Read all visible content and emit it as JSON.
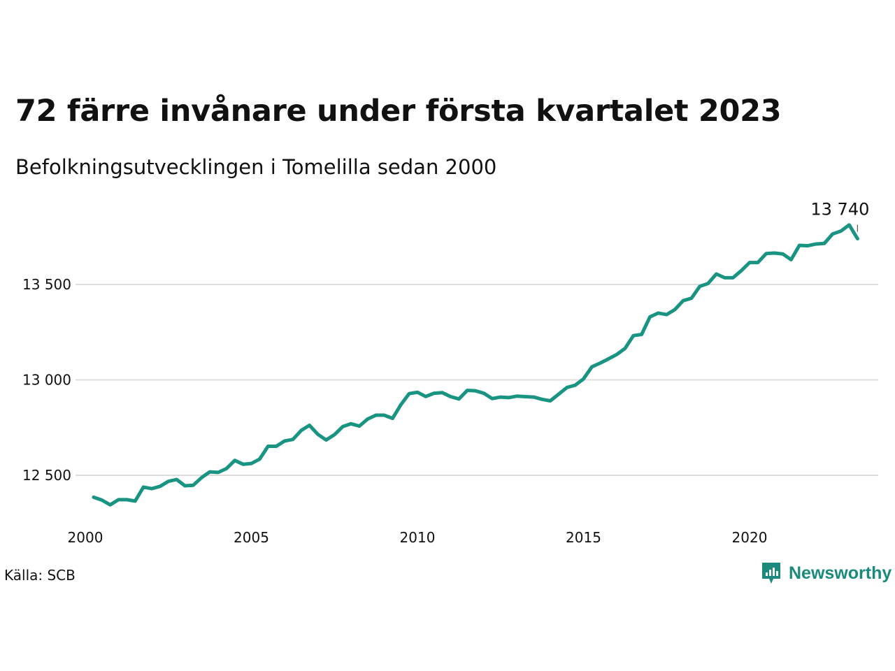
{
  "header": {
    "title": "72 färre invånare under första kvartalet 2023",
    "subtitle": "Befolkningsutvecklingen i Tomelilla sedan 2000"
  },
  "footer": {
    "source": "Källa: SCB",
    "brand_name": "Newsworthy",
    "brand_color": "#1a8a7c"
  },
  "colors": {
    "line": "#1a9482",
    "grid": "#dddddd",
    "text": "#111111"
  },
  "chart_data": {
    "type": "line",
    "title": "72 färre invånare under första kvartalet 2023",
    "subtitle": "Befolkningsutvecklingen i Tomelilla sedan 2000",
    "xlabel": "",
    "ylabel": "",
    "x_ticks": [
      2000,
      2005,
      2010,
      2015,
      2020
    ],
    "x_tick_labels": [
      "2000",
      "2005",
      "2010",
      "2015",
      "2020"
    ],
    "y_ticks": [
      12500,
      13000,
      13500
    ],
    "y_tick_labels": [
      "12 500",
      "13 000",
      "13 500"
    ],
    "xlim": [
      2000,
      2024
    ],
    "ylim": [
      12300,
      13870
    ],
    "grid": "horizontal",
    "last_value_label": "13 740",
    "series": [
      {
        "x": [
          2000.25,
          2000.5,
          2000.75,
          2001.0,
          2001.25,
          2001.5,
          2001.75,
          2002.0,
          2002.25,
          2002.5,
          2002.75,
          2003.0,
          2003.25,
          2003.5,
          2003.75,
          2004.0,
          2004.25,
          2004.5,
          2004.75,
          2005.0,
          2005.25,
          2005.5,
          2005.75,
          2006.0,
          2006.25,
          2006.5,
          2006.75,
          2007.0,
          2007.25,
          2007.5,
          2007.75,
          2008.0,
          2008.25,
          2008.5,
          2008.75,
          2009.0,
          2009.25,
          2009.5,
          2009.75,
          2010.0,
          2010.25,
          2010.5,
          2010.75,
          2011.0,
          2011.25,
          2011.5,
          2011.75,
          2012.0,
          2012.25,
          2012.5,
          2012.75,
          2013.0,
          2013.25,
          2013.5,
          2013.75,
          2014.0,
          2014.25,
          2014.5,
          2014.75,
          2015.0,
          2015.25,
          2015.5,
          2015.75,
          2016.0,
          2016.25,
          2016.5,
          2016.75,
          2017.0,
          2017.25,
          2017.5,
          2017.75,
          2018.0,
          2018.25,
          2018.5,
          2018.75,
          2019.0,
          2019.25,
          2019.5,
          2019.75,
          2020.0,
          2020.25,
          2020.5,
          2020.75,
          2021.0,
          2021.25,
          2021.5,
          2021.75,
          2022.0,
          2022.25,
          2022.5,
          2022.75,
          2023.0,
          2023.25
        ],
        "values": [
          12385,
          12370,
          12345,
          12372,
          12372,
          12365,
          12438,
          12430,
          12442,
          12468,
          12478,
          12445,
          12448,
          12488,
          12518,
          12515,
          12535,
          12578,
          12558,
          12562,
          12585,
          12652,
          12652,
          12680,
          12688,
          12735,
          12762,
          12715,
          12685,
          12713,
          12755,
          12770,
          12758,
          12795,
          12815,
          12815,
          12798,
          12870,
          12928,
          12935,
          12913,
          12930,
          12933,
          12912,
          12900,
          12945,
          12943,
          12930,
          12902,
          12910,
          12907,
          12915,
          12912,
          12910,
          12898,
          12890,
          12925,
          12960,
          12972,
          13005,
          13068,
          13088,
          13110,
          13133,
          13165,
          13232,
          13238,
          13330,
          13350,
          13342,
          13368,
          13415,
          13428,
          13490,
          13505,
          13555,
          13535,
          13535,
          13572,
          13615,
          13615,
          13662,
          13665,
          13660,
          13630,
          13705,
          13703,
          13712,
          13715,
          13765,
          13780,
          13812,
          13740
        ]
      }
    ]
  }
}
